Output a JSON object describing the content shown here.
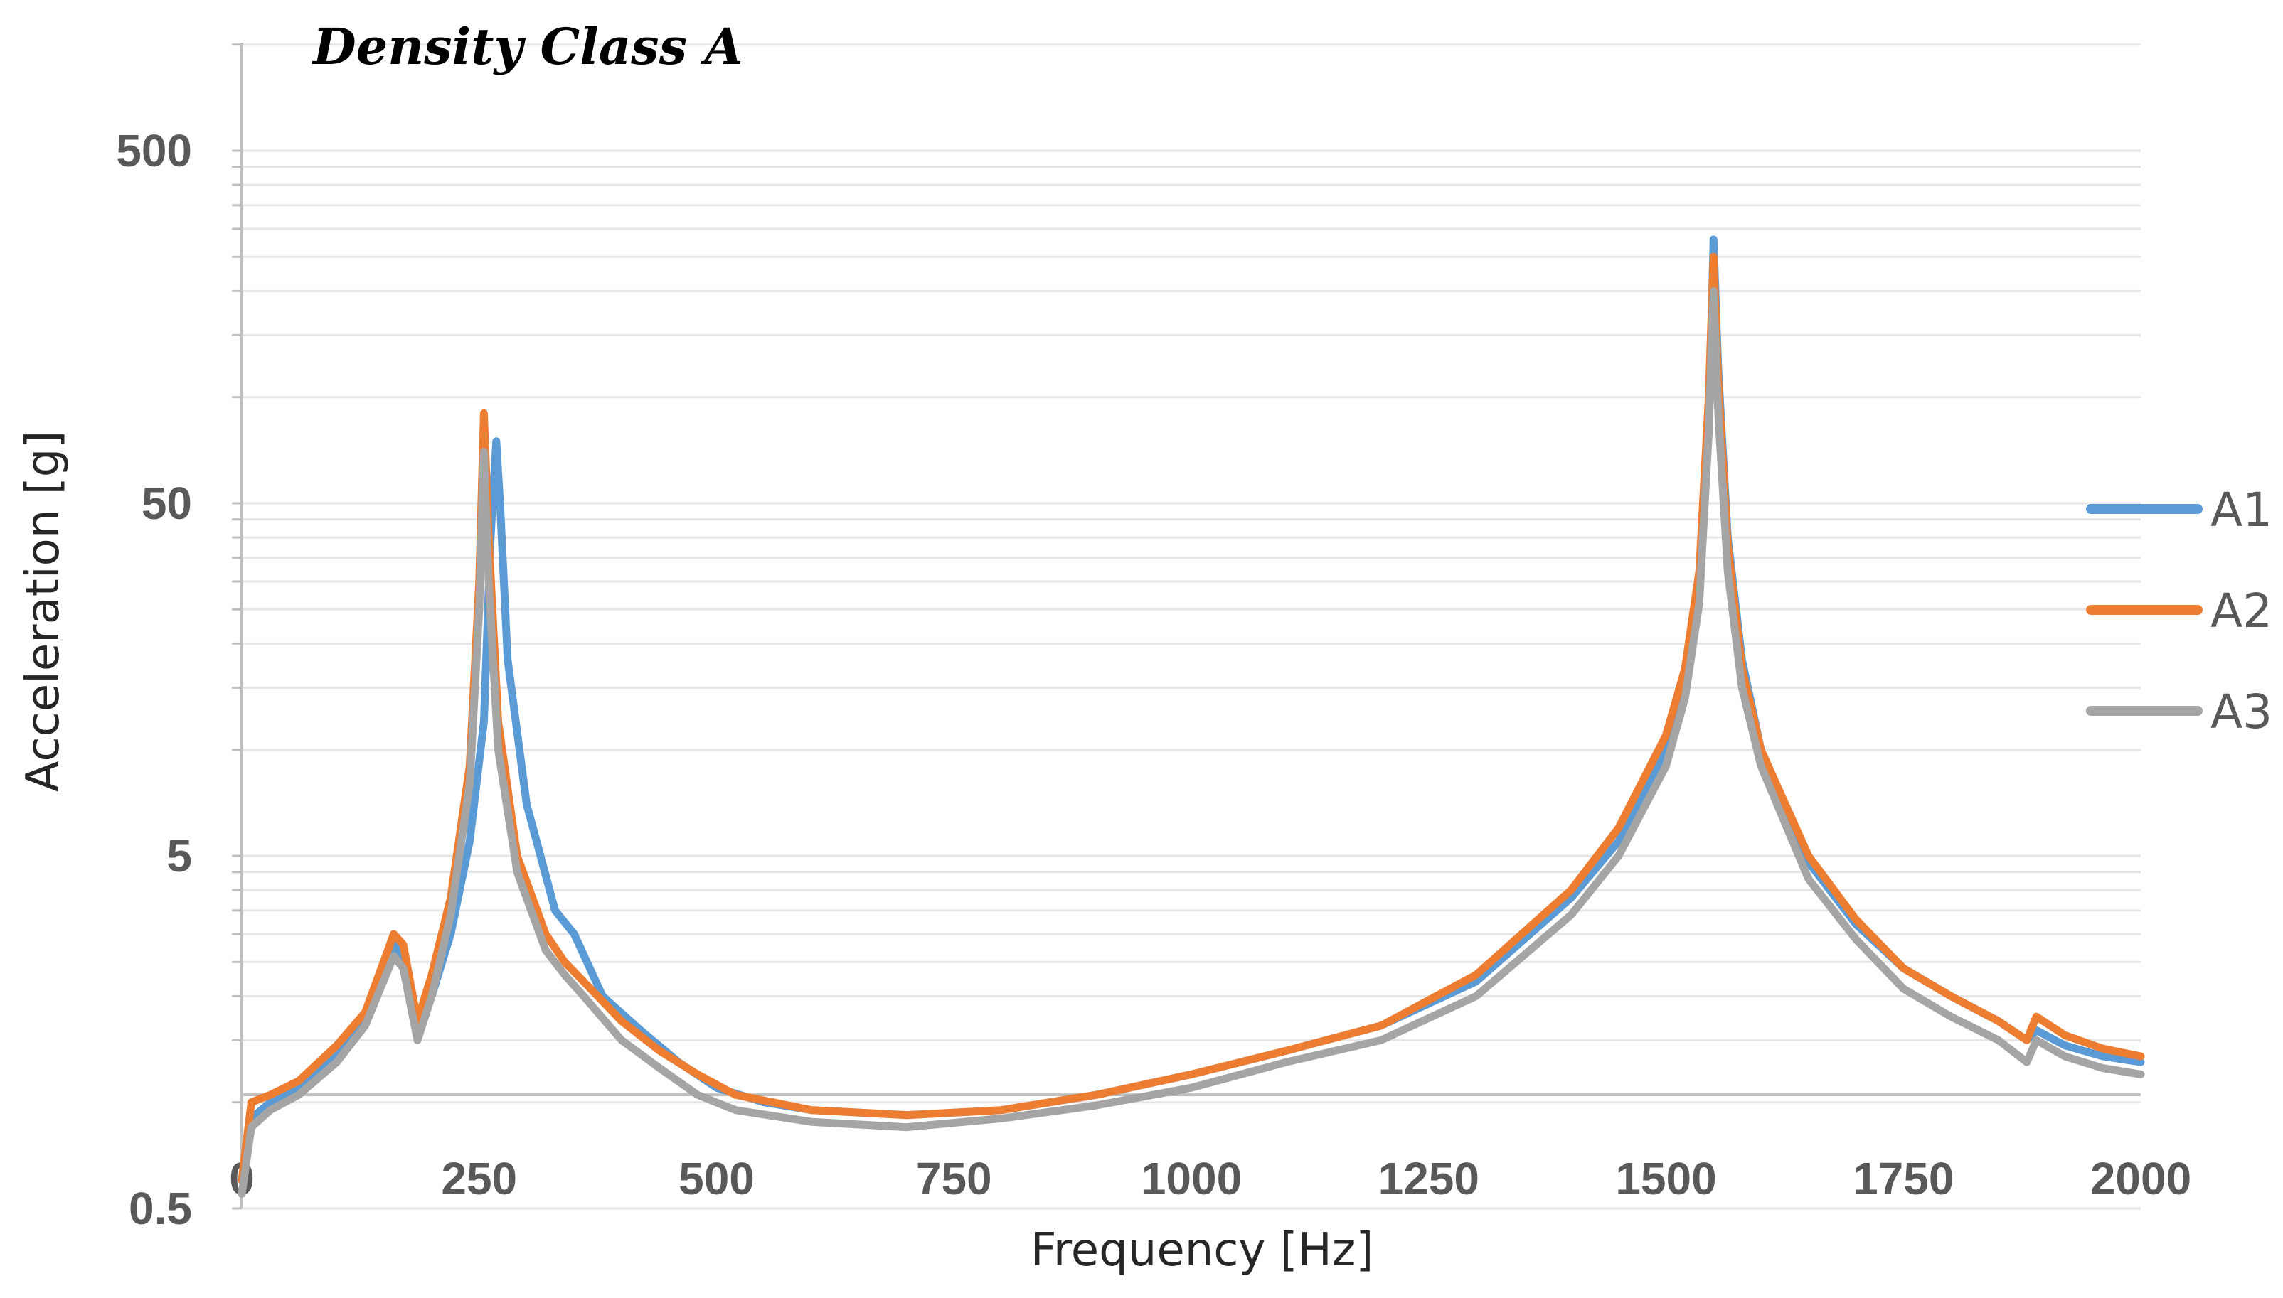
{
  "chart_data": {
    "type": "line",
    "title": "Density Class A",
    "xlabel": "Frequency [Hz]",
    "ylabel": "Acceleration [g]",
    "xlim": [
      0,
      2000
    ],
    "ylim": [
      0.5,
      1000
    ],
    "yscale": "log",
    "x_ticks": [
      "0",
      "250",
      "500",
      "750",
      "1000",
      "1250",
      "1500",
      "1750",
      "2000"
    ],
    "y_ticks": [
      "0.5",
      "5",
      "50",
      "500"
    ],
    "grid": true,
    "legend": "right",
    "series": [
      {
        "name": "A1",
        "color": "#5B9BD5",
        "x": [
          0,
          10,
          30,
          60,
          100,
          130,
          160,
          170,
          185,
          200,
          220,
          240,
          255,
          262,
          268,
          272,
          280,
          300,
          330,
          350,
          380,
          420,
          460,
          500,
          550,
          600,
          700,
          800,
          900,
          1000,
          1100,
          1200,
          1300,
          1400,
          1450,
          1500,
          1520,
          1535,
          1545,
          1550,
          1555,
          1565,
          1580,
          1600,
          1650,
          1700,
          1750,
          1800,
          1850,
          1880,
          1890,
          1920,
          1960,
          2000
        ],
        "y": [
          0.6,
          0.9,
          1.0,
          1.1,
          1.35,
          1.7,
          2.8,
          2.6,
          1.6,
          2.0,
          3.0,
          5.5,
          12,
          40,
          75,
          50,
          18,
          7.0,
          3.5,
          3.0,
          2.0,
          1.6,
          1.3,
          1.1,
          1.0,
          0.95,
          0.92,
          0.95,
          1.05,
          1.2,
          1.4,
          1.65,
          2.2,
          3.8,
          5.5,
          10,
          15,
          28,
          80,
          280,
          120,
          40,
          18,
          10,
          4.8,
          3.2,
          2.4,
          2.0,
          1.7,
          1.5,
          1.6,
          1.45,
          1.35,
          1.3
        ]
      },
      {
        "name": "A2",
        "color": "#ED7D31",
        "x": [
          0,
          10,
          30,
          60,
          100,
          130,
          160,
          170,
          185,
          200,
          220,
          240,
          250,
          255,
          260,
          270,
          290,
          320,
          340,
          360,
          400,
          440,
          480,
          520,
          600,
          700,
          800,
          900,
          1000,
          1100,
          1200,
          1300,
          1400,
          1450,
          1500,
          1520,
          1535,
          1545,
          1550,
          1555,
          1565,
          1580,
          1600,
          1650,
          1700,
          1750,
          1800,
          1850,
          1880,
          1890,
          1920,
          1960,
          2000
        ],
        "y": [
          0.6,
          1.0,
          1.05,
          1.15,
          1.45,
          1.8,
          3.0,
          2.8,
          1.7,
          2.3,
          3.8,
          9.0,
          30,
          90,
          40,
          12,
          5.0,
          3.0,
          2.5,
          2.2,
          1.7,
          1.4,
          1.2,
          1.05,
          0.95,
          0.92,
          0.95,
          1.05,
          1.2,
          1.4,
          1.65,
          2.3,
          4.0,
          6.0,
          11,
          17,
          32,
          100,
          250,
          110,
          38,
          17,
          10,
          5.0,
          3.3,
          2.4,
          2.0,
          1.7,
          1.5,
          1.75,
          1.55,
          1.42,
          1.35
        ]
      },
      {
        "name": "A3",
        "color": "#A5A5A5",
        "x": [
          0,
          10,
          30,
          60,
          100,
          130,
          160,
          170,
          185,
          200,
          220,
          240,
          250,
          255,
          260,
          270,
          290,
          320,
          340,
          360,
          400,
          440,
          480,
          520,
          600,
          700,
          800,
          900,
          1000,
          1100,
          1200,
          1300,
          1400,
          1450,
          1500,
          1520,
          1535,
          1545,
          1550,
          1555,
          1565,
          1580,
          1600,
          1650,
          1700,
          1750,
          1800,
          1850,
          1880,
          1890,
          1920,
          1960,
          2000
        ],
        "y": [
          0.55,
          0.85,
          0.95,
          1.05,
          1.3,
          1.65,
          2.6,
          2.4,
          1.5,
          2.0,
          3.4,
          8.0,
          25,
          70,
          30,
          10,
          4.5,
          2.7,
          2.3,
          2.0,
          1.5,
          1.25,
          1.05,
          0.95,
          0.88,
          0.85,
          0.9,
          0.98,
          1.1,
          1.3,
          1.5,
          2.0,
          3.4,
          5.0,
          9.0,
          14,
          26,
          80,
          200,
          90,
          32,
          15,
          9.0,
          4.3,
          2.9,
          2.1,
          1.75,
          1.5,
          1.3,
          1.5,
          1.35,
          1.25,
          1.2
        ]
      }
    ]
  }
}
